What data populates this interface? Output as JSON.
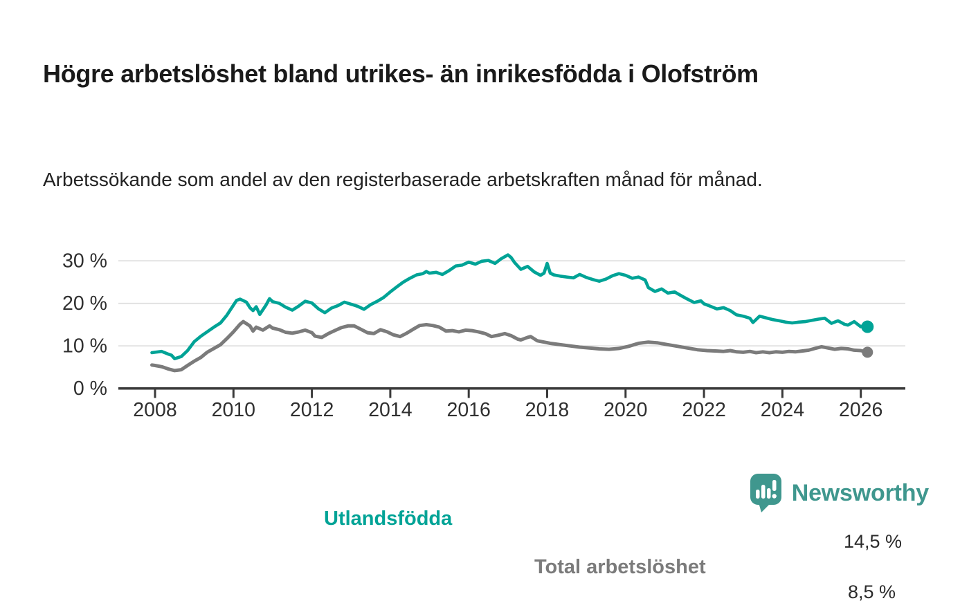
{
  "headline": "Högre arbetslöshet bland utrikes- än inrikesfödda i Olofström",
  "subtitle": "Arbetssökande som andel av den registerbaserade arbetskraften månad för månad.",
  "colors": {
    "teal": "#00a396",
    "gray": "#7b7b7b",
    "axis": "#3a3a3a",
    "grid": "#dcdcdc",
    "tick_text": "#303030",
    "logo_teal": "#3f978e"
  },
  "logo": {
    "text": "Newsworthy",
    "icon": "speech-bubble-bar-chart"
  },
  "chart_data": {
    "type": "line",
    "title": "",
    "xlabel": "",
    "ylabel": "",
    "unit": "%",
    "xlim": [
      2007.05,
      2027.1
    ],
    "ylim": [
      0,
      33
    ],
    "grid": true,
    "legend_position": "on-line-labels",
    "xticks": [
      2008,
      2010,
      2012,
      2014,
      2016,
      2018,
      2020,
      2022,
      2024,
      2026
    ],
    "yticks": [
      0,
      10,
      20,
      30
    ],
    "ytick_labels": [
      "0 %",
      "10 %",
      "20 %",
      "30 %"
    ],
    "series": [
      {
        "name": "Total arbetslöshet",
        "color": "#7b7b7b",
        "end_label": "8,5 %",
        "end_value": 8.5,
        "points": [
          [
            2007.92,
            5.5
          ],
          [
            2008.0,
            5.4
          ],
          [
            2008.17,
            5.1
          ],
          [
            2008.33,
            4.6
          ],
          [
            2008.5,
            4.2
          ],
          [
            2008.67,
            4.4
          ],
          [
            2008.83,
            5.4
          ],
          [
            2009.0,
            6.4
          ],
          [
            2009.17,
            7.3
          ],
          [
            2009.33,
            8.5
          ],
          [
            2009.5,
            9.4
          ],
          [
            2009.67,
            10.3
          ],
          [
            2009.83,
            11.7
          ],
          [
            2010.0,
            13.3
          ],
          [
            2010.17,
            15.1
          ],
          [
            2010.25,
            15.7
          ],
          [
            2010.42,
            14.7
          ],
          [
            2010.5,
            13.5
          ],
          [
            2010.58,
            14.4
          ],
          [
            2010.75,
            13.7
          ],
          [
            2010.92,
            14.7
          ],
          [
            2011.0,
            14.2
          ],
          [
            2011.17,
            13.8
          ],
          [
            2011.33,
            13.2
          ],
          [
            2011.5,
            13.0
          ],
          [
            2011.67,
            13.3
          ],
          [
            2011.83,
            13.7
          ],
          [
            2012.0,
            13.1
          ],
          [
            2012.08,
            12.3
          ],
          [
            2012.25,
            12.0
          ],
          [
            2012.42,
            12.9
          ],
          [
            2012.58,
            13.6
          ],
          [
            2012.75,
            14.3
          ],
          [
            2012.92,
            14.7
          ],
          [
            2013.08,
            14.7
          ],
          [
            2013.25,
            13.9
          ],
          [
            2013.42,
            13.1
          ],
          [
            2013.58,
            12.9
          ],
          [
            2013.75,
            13.8
          ],
          [
            2013.92,
            13.3
          ],
          [
            2014.08,
            12.6
          ],
          [
            2014.25,
            12.2
          ],
          [
            2014.42,
            13.0
          ],
          [
            2014.58,
            13.9
          ],
          [
            2014.75,
            14.8
          ],
          [
            2014.92,
            15.0
          ],
          [
            2015.08,
            14.8
          ],
          [
            2015.25,
            14.4
          ],
          [
            2015.42,
            13.5
          ],
          [
            2015.58,
            13.6
          ],
          [
            2015.75,
            13.3
          ],
          [
            2015.92,
            13.7
          ],
          [
            2016.08,
            13.6
          ],
          [
            2016.25,
            13.3
          ],
          [
            2016.42,
            12.9
          ],
          [
            2016.58,
            12.2
          ],
          [
            2016.75,
            12.5
          ],
          [
            2016.92,
            12.9
          ],
          [
            2017.08,
            12.4
          ],
          [
            2017.25,
            11.6
          ],
          [
            2017.33,
            11.4
          ],
          [
            2017.5,
            12.0
          ],
          [
            2017.58,
            12.2
          ],
          [
            2017.75,
            11.2
          ],
          [
            2017.92,
            10.9
          ],
          [
            2018.08,
            10.6
          ],
          [
            2018.33,
            10.3
          ],
          [
            2018.58,
            10.0
          ],
          [
            2018.83,
            9.7
          ],
          [
            2019.08,
            9.5
          ],
          [
            2019.33,
            9.3
          ],
          [
            2019.58,
            9.2
          ],
          [
            2019.83,
            9.4
          ],
          [
            2020.08,
            9.9
          ],
          [
            2020.33,
            10.6
          ],
          [
            2020.58,
            10.9
          ],
          [
            2020.83,
            10.7
          ],
          [
            2021.08,
            10.3
          ],
          [
            2021.33,
            9.9
          ],
          [
            2021.58,
            9.5
          ],
          [
            2021.83,
            9.1
          ],
          [
            2022.08,
            8.9
          ],
          [
            2022.33,
            8.8
          ],
          [
            2022.5,
            8.7
          ],
          [
            2022.67,
            8.9
          ],
          [
            2022.83,
            8.6
          ],
          [
            2023.0,
            8.5
          ],
          [
            2023.17,
            8.7
          ],
          [
            2023.33,
            8.4
          ],
          [
            2023.5,
            8.6
          ],
          [
            2023.67,
            8.4
          ],
          [
            2023.83,
            8.6
          ],
          [
            2024.0,
            8.5
          ],
          [
            2024.17,
            8.7
          ],
          [
            2024.33,
            8.6
          ],
          [
            2024.5,
            8.8
          ],
          [
            2024.67,
            9.0
          ],
          [
            2024.83,
            9.4
          ],
          [
            2025.0,
            9.8
          ],
          [
            2025.17,
            9.5
          ],
          [
            2025.33,
            9.2
          ],
          [
            2025.5,
            9.4
          ],
          [
            2025.67,
            9.3
          ],
          [
            2025.83,
            9.0
          ],
          [
            2026.0,
            8.9
          ],
          [
            2026.17,
            8.5
          ]
        ]
      },
      {
        "name": "Utlandsfödda",
        "color": "#00a396",
        "end_label": "14,5 %",
        "end_value": 14.5,
        "points": [
          [
            2007.92,
            8.4
          ],
          [
            2008.0,
            8.5
          ],
          [
            2008.17,
            8.7
          ],
          [
            2008.33,
            8.1
          ],
          [
            2008.42,
            7.8
          ],
          [
            2008.5,
            7.0
          ],
          [
            2008.67,
            7.5
          ],
          [
            2008.83,
            8.9
          ],
          [
            2009.0,
            11.0
          ],
          [
            2009.17,
            12.3
          ],
          [
            2009.33,
            13.3
          ],
          [
            2009.5,
            14.4
          ],
          [
            2009.67,
            15.4
          ],
          [
            2009.83,
            17.2
          ],
          [
            2010.0,
            19.6
          ],
          [
            2010.08,
            20.7
          ],
          [
            2010.17,
            21.0
          ],
          [
            2010.33,
            20.3
          ],
          [
            2010.42,
            19.0
          ],
          [
            2010.5,
            18.3
          ],
          [
            2010.58,
            19.2
          ],
          [
            2010.67,
            17.4
          ],
          [
            2010.83,
            19.6
          ],
          [
            2010.92,
            21.1
          ],
          [
            2011.0,
            20.4
          ],
          [
            2011.17,
            20.0
          ],
          [
            2011.33,
            19.1
          ],
          [
            2011.5,
            18.4
          ],
          [
            2011.67,
            19.4
          ],
          [
            2011.83,
            20.5
          ],
          [
            2012.0,
            20.1
          ],
          [
            2012.17,
            18.7
          ],
          [
            2012.33,
            17.8
          ],
          [
            2012.5,
            18.9
          ],
          [
            2012.67,
            19.5
          ],
          [
            2012.83,
            20.3
          ],
          [
            2013.0,
            19.8
          ],
          [
            2013.17,
            19.3
          ],
          [
            2013.33,
            18.6
          ],
          [
            2013.5,
            19.7
          ],
          [
            2013.67,
            20.5
          ],
          [
            2013.83,
            21.4
          ],
          [
            2014.0,
            22.7
          ],
          [
            2014.17,
            23.9
          ],
          [
            2014.33,
            25.0
          ],
          [
            2014.5,
            25.9
          ],
          [
            2014.67,
            26.7
          ],
          [
            2014.83,
            27.0
          ],
          [
            2014.92,
            27.5
          ],
          [
            2015.0,
            27.1
          ],
          [
            2015.17,
            27.3
          ],
          [
            2015.33,
            26.8
          ],
          [
            2015.5,
            27.7
          ],
          [
            2015.67,
            28.8
          ],
          [
            2015.83,
            29.0
          ],
          [
            2016.0,
            29.7
          ],
          [
            2016.17,
            29.2
          ],
          [
            2016.33,
            29.9
          ],
          [
            2016.5,
            30.1
          ],
          [
            2016.67,
            29.4
          ],
          [
            2016.83,
            30.5
          ],
          [
            2017.0,
            31.4
          ],
          [
            2017.08,
            30.8
          ],
          [
            2017.17,
            29.6
          ],
          [
            2017.33,
            28.0
          ],
          [
            2017.5,
            28.7
          ],
          [
            2017.67,
            27.4
          ],
          [
            2017.83,
            26.6
          ],
          [
            2017.92,
            27.1
          ],
          [
            2018.0,
            29.4
          ],
          [
            2018.08,
            27.1
          ],
          [
            2018.17,
            26.7
          ],
          [
            2018.33,
            26.4
          ],
          [
            2018.5,
            26.2
          ],
          [
            2018.67,
            26.0
          ],
          [
            2018.83,
            26.8
          ],
          [
            2019.0,
            26.1
          ],
          [
            2019.17,
            25.6
          ],
          [
            2019.33,
            25.2
          ],
          [
            2019.5,
            25.7
          ],
          [
            2019.67,
            26.5
          ],
          [
            2019.83,
            27.0
          ],
          [
            2020.0,
            26.6
          ],
          [
            2020.17,
            25.9
          ],
          [
            2020.33,
            26.2
          ],
          [
            2020.5,
            25.5
          ],
          [
            2020.58,
            23.7
          ],
          [
            2020.75,
            22.8
          ],
          [
            2020.92,
            23.4
          ],
          [
            2021.08,
            22.4
          ],
          [
            2021.25,
            22.7
          ],
          [
            2021.42,
            21.8
          ],
          [
            2021.58,
            21.0
          ],
          [
            2021.75,
            20.2
          ],
          [
            2021.92,
            20.6
          ],
          [
            2022.0,
            19.9
          ],
          [
            2022.17,
            19.3
          ],
          [
            2022.33,
            18.7
          ],
          [
            2022.5,
            19.0
          ],
          [
            2022.67,
            18.3
          ],
          [
            2022.83,
            17.3
          ],
          [
            2023.0,
            17.0
          ],
          [
            2023.17,
            16.5
          ],
          [
            2023.25,
            15.5
          ],
          [
            2023.42,
            17.0
          ],
          [
            2023.58,
            16.6
          ],
          [
            2023.75,
            16.2
          ],
          [
            2023.92,
            15.9
          ],
          [
            2024.08,
            15.6
          ],
          [
            2024.25,
            15.4
          ],
          [
            2024.42,
            15.6
          ],
          [
            2024.58,
            15.7
          ],
          [
            2024.75,
            16.0
          ],
          [
            2024.92,
            16.3
          ],
          [
            2025.08,
            16.5
          ],
          [
            2025.25,
            15.3
          ],
          [
            2025.42,
            15.9
          ],
          [
            2025.58,
            15.1
          ],
          [
            2025.67,
            14.9
          ],
          [
            2025.83,
            15.7
          ],
          [
            2026.0,
            14.5
          ],
          [
            2026.08,
            14.9
          ],
          [
            2026.17,
            14.5
          ]
        ]
      }
    ]
  }
}
